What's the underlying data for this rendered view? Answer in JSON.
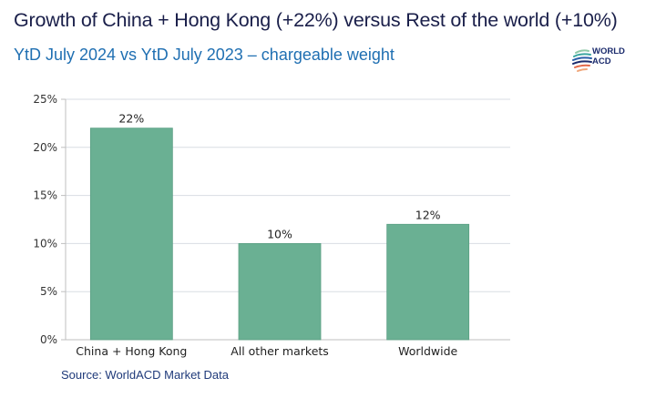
{
  "header": {
    "title": "Growth of China + Hong Kong (+22%) versus Rest of the world (+10%)",
    "subtitle": "YtD July 2024 vs YtD July 2023 – chargeable weight",
    "logo": {
      "line1": "WORLD",
      "line2": "ACD"
    }
  },
  "footer": {
    "source": "Source: WorldACD Market Data"
  },
  "colors": {
    "bar": "#6ab093",
    "bar_edge": "#5a9f83",
    "grid": "#d9dde3",
    "axis": "#bfbfbf",
    "title": "#1a1f4a",
    "subtitle": "#1f6fb2"
  },
  "chart_data": {
    "type": "bar",
    "title": "Growth of China + Hong Kong (+22%) versus Rest of the world (+10%)",
    "subtitle": "YtD July 2024 vs YtD July 2023 – chargeable weight",
    "xlabel": "",
    "ylabel": "",
    "categories": [
      "China + Hong Kong",
      "All other markets",
      "Worldwide"
    ],
    "values": [
      22,
      10,
      12
    ],
    "data_labels": [
      "22%",
      "10%",
      "12%"
    ],
    "ylim": [
      0,
      25
    ],
    "yticks": [
      0,
      5,
      10,
      15,
      20,
      25
    ],
    "ytick_labels": [
      "0%",
      "5%",
      "10%",
      "15%",
      "20%",
      "25%"
    ],
    "grid": true,
    "legend": "none"
  }
}
